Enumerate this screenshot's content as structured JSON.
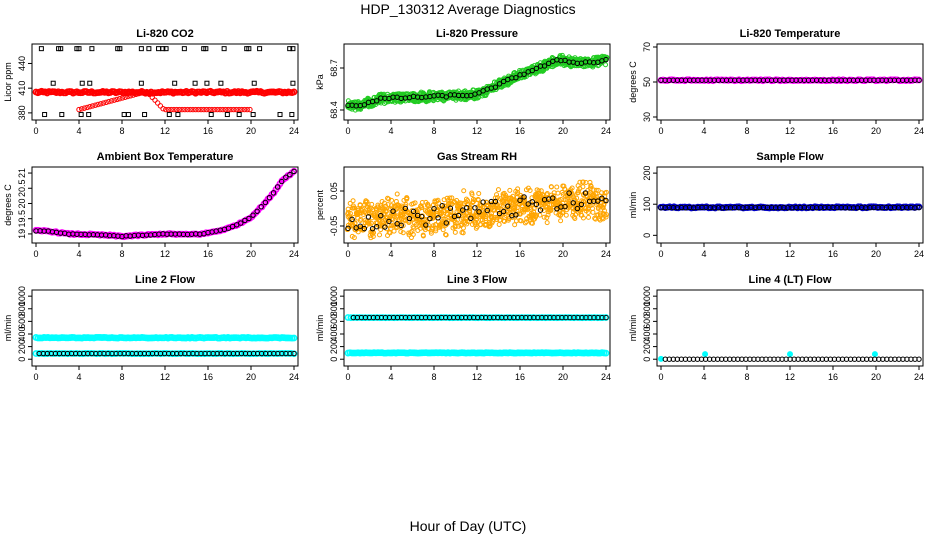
{
  "page": {
    "title": "HDP_130312  Average Diagnostics",
    "xlabel": "Hour of Day (UTC)"
  },
  "colors": {
    "red": "#ff0000",
    "green": "#22cc22",
    "magenta": "#ff00ff",
    "orange": "#ffa500",
    "blue": "#0000cc",
    "cyan": "#00ffff",
    "black": "#000000"
  },
  "chart_data": [
    {
      "id": "co2",
      "type": "scatter",
      "title": "Li-820 CO2",
      "ylabel": "Licor ppm",
      "xlim": [
        0,
        24
      ],
      "ylim": [
        375,
        460
      ],
      "xticks": [
        0,
        4,
        8,
        12,
        16,
        20,
        24
      ],
      "yticks": [
        380,
        410,
        440
      ],
      "series": [
        {
          "name": "co2-mean",
          "color": "#ff0000",
          "style": "dense",
          "x": [
            0,
            24
          ],
          "y": [
            405,
            405
          ],
          "noise": 1.2,
          "n": 140
        },
        {
          "name": "co2-red-outliers",
          "color": "#ff0000",
          "style": "circle",
          "x": [
            4,
            10.3,
            11.9,
            19.9
          ],
          "y": [
            384,
            406,
            384,
            384
          ]
        },
        {
          "name": "co2-minmax",
          "color": "#000000",
          "style": "square",
          "x": [
            0.5,
            2.1,
            2.3,
            3.8,
            4.0,
            5.2,
            7.6,
            7.8,
            9.8,
            10.5,
            11.4,
            11.8,
            12.1,
            13.8,
            15.6,
            15.8,
            17.5,
            19.6,
            19.8,
            20.8,
            23.6,
            23.9,
            0.8,
            2.4,
            4.2,
            4.9,
            8.2,
            8.6,
            10.1,
            12.4,
            13.2,
            16.3,
            17.8,
            18.9,
            20.2,
            22.7,
            23.8,
            1.6,
            4.3,
            5.0,
            9.8,
            12.9,
            14.8,
            15.9,
            17.2,
            20.3,
            23.9
          ],
          "y": [
            458,
            458,
            458,
            458,
            458,
            458,
            458,
            458,
            458,
            458,
            458,
            458,
            458,
            458,
            458,
            458,
            458,
            458,
            458,
            458,
            458,
            458,
            378,
            378,
            378,
            378,
            378,
            378,
            378,
            378,
            378,
            378,
            378,
            378,
            378,
            378,
            378,
            416,
            416,
            416,
            416,
            416,
            416,
            416,
            416,
            416,
            416
          ]
        }
      ]
    },
    {
      "id": "pressure",
      "type": "scatter",
      "title": "Li-820 Pressure",
      "ylabel": "kPa",
      "xlim": [
        0,
        24
      ],
      "ylim": [
        68.35,
        68.85
      ],
      "xticks": [
        0,
        4,
        8,
        12,
        16,
        20,
        24
      ],
      "yticks": [
        68.4,
        68.7
      ],
      "series": [
        {
          "name": "pressure-range",
          "color": "#22cc22",
          "style": "band",
          "x": [
            0,
            1,
            3,
            6,
            9,
            12,
            14,
            16,
            18,
            19.7,
            21,
            23,
            24
          ],
          "y": [
            68.44,
            68.43,
            68.48,
            68.49,
            68.5,
            68.51,
            68.58,
            68.65,
            68.71,
            68.76,
            68.74,
            68.74,
            68.76
          ],
          "spread": 0.035
        },
        {
          "name": "pressure-mean",
          "color": "#000000",
          "style": "circle",
          "x": [
            0,
            1,
            3,
            6,
            9,
            12,
            14,
            16,
            18,
            19.7,
            21,
            23,
            24
          ],
          "y": [
            68.44,
            68.43,
            68.48,
            68.49,
            68.5,
            68.51,
            68.58,
            68.65,
            68.71,
            68.76,
            68.74,
            68.74,
            68.76
          ],
          "noise": 0.008,
          "n": 64
        }
      ]
    },
    {
      "id": "licor-temp",
      "type": "scatter",
      "title": "Li-820 Temperature",
      "ylabel": "degrees C",
      "xlim": [
        0,
        24
      ],
      "ylim": [
        30,
        70
      ],
      "xticks": [
        0,
        4,
        8,
        12,
        16,
        20,
        24
      ],
      "yticks": [
        30,
        50,
        70
      ],
      "series": [
        {
          "name": "licor-temp-range",
          "color": "#ff00ff",
          "style": "dense",
          "x": [
            0,
            24
          ],
          "y": [
            51,
            51
          ],
          "noise": 0.3,
          "n": 120
        },
        {
          "name": "licor-temp-mean",
          "color": "#000000",
          "style": "circle",
          "x": [
            0,
            24
          ],
          "y": [
            51,
            51
          ],
          "noise": 0,
          "n": 64
        }
      ]
    },
    {
      "id": "box-temp",
      "type": "scatter",
      "title": "Ambient Box Temperature",
      "ylabel": "degrees C",
      "xlim": [
        0,
        24
      ],
      "ylim": [
        18.8,
        21.1
      ],
      "xticks": [
        0,
        4,
        8,
        12,
        16,
        20,
        24
      ],
      "yticks": [
        19.0,
        19.5,
        20.0,
        20.5,
        21.0
      ],
      "series": [
        {
          "name": "box-temp-range",
          "color": "#ff00ff",
          "style": "dense",
          "x": [
            0,
            1,
            3,
            5,
            7,
            8,
            10,
            12,
            14,
            15.5,
            17,
            18,
            19,
            20,
            21,
            22,
            23,
            24
          ],
          "y": [
            19.1,
            19.1,
            19.0,
            18.98,
            18.95,
            18.92,
            18.96,
            19.0,
            18.98,
            19.0,
            19.1,
            19.2,
            19.35,
            19.55,
            19.9,
            20.3,
            20.8,
            21.05
          ],
          "noise": 0.02,
          "n": 130
        },
        {
          "name": "box-temp-mean",
          "color": "#000000",
          "style": "circle",
          "x": [
            0,
            1,
            3,
            5,
            7,
            8,
            10,
            12,
            14,
            15.5,
            17,
            18,
            19,
            20,
            21,
            22,
            23,
            24
          ],
          "y": [
            19.1,
            19.1,
            19.0,
            18.98,
            18.95,
            18.92,
            18.96,
            19.0,
            18.98,
            19.0,
            19.1,
            19.2,
            19.35,
            19.55,
            19.9,
            20.3,
            20.8,
            21.05
          ],
          "noise": 0.01,
          "n": 64
        }
      ]
    },
    {
      "id": "rh",
      "type": "scatter",
      "title": "Gas Stream RH",
      "ylabel": "percent",
      "xlim": [
        0,
        24
      ],
      "ylim": [
        -0.09,
        0.11
      ],
      "xticks": [
        0,
        4,
        8,
        12,
        16,
        20,
        24
      ],
      "yticks": [
        -0.05,
        0.05
      ],
      "series": [
        {
          "name": "rh-range",
          "color": "#ffa500",
          "style": "band",
          "x": [
            0,
            8,
            16,
            24
          ],
          "y": [
            -0.035,
            -0.02,
            0.005,
            0.025
          ],
          "spread": 0.045,
          "noise": 0.02
        },
        {
          "name": "rh-mean",
          "color": "#000000",
          "style": "circle",
          "x": [
            0,
            8,
            16,
            24
          ],
          "y": [
            -0.035,
            -0.02,
            0.005,
            0.025
          ],
          "noise": 0.028,
          "n": 64
        }
      ]
    },
    {
      "id": "sample-flow",
      "type": "scatter",
      "title": "Sample Flow",
      "ylabel": "ml/min",
      "xlim": [
        0,
        24
      ],
      "ylim": [
        -15,
        210
      ],
      "xticks": [
        0,
        4,
        8,
        12,
        16,
        20,
        24
      ],
      "yticks": [
        0,
        100,
        200
      ],
      "series": [
        {
          "name": "sample-flow-range",
          "color": "#0000cc",
          "style": "dense",
          "x": [
            0,
            24
          ],
          "y": [
            90,
            90
          ],
          "noise": 2,
          "n": 120
        },
        {
          "name": "sample-flow-mean",
          "color": "#000000",
          "style": "circle",
          "x": [
            0,
            24
          ],
          "y": [
            89,
            89
          ],
          "noise": 0.8,
          "n": 64
        }
      ]
    },
    {
      "id": "line2-flow",
      "type": "scatter",
      "title": "Line 2 Flow",
      "ylabel": "ml/min",
      "xlim": [
        0,
        24
      ],
      "ylim": [
        -60,
        1050
      ],
      "xticks": [
        0,
        4,
        8,
        12,
        16,
        20,
        24
      ],
      "yticks": [
        0,
        200,
        400,
        600,
        800,
        1000
      ],
      "series": [
        {
          "name": "line2-range-high",
          "color": "#00ffff",
          "style": "dense",
          "x": [
            0,
            24
          ],
          "y": [
            340,
            340
          ],
          "noise": 6,
          "n": 130
        },
        {
          "name": "line2-range-low",
          "color": "#00ffff",
          "style": "dense",
          "x": [
            0,
            24
          ],
          "y": [
            90,
            90
          ],
          "noise": 3,
          "n": 90
        },
        {
          "name": "line2-mean",
          "color": "#000000",
          "style": "circle",
          "x": [
            0.3,
            24
          ],
          "y": [
            90,
            90
          ],
          "noise": 0,
          "n": 64
        }
      ]
    },
    {
      "id": "line3-flow",
      "type": "scatter",
      "title": "Line 3 Flow",
      "ylabel": "ml/min",
      "xlim": [
        0,
        24
      ],
      "ylim": [
        -60,
        1050
      ],
      "xticks": [
        0,
        4,
        8,
        12,
        16,
        20,
        24
      ],
      "yticks": [
        0,
        200,
        400,
        600,
        800,
        1000
      ],
      "series": [
        {
          "name": "line3-range-high",
          "color": "#00ffff",
          "style": "dense",
          "x": [
            0,
            24
          ],
          "y": [
            660,
            660
          ],
          "noise": 2,
          "n": 90
        },
        {
          "name": "line3-range-low",
          "color": "#00ffff",
          "style": "dense",
          "x": [
            0,
            24
          ],
          "y": [
            100,
            100
          ],
          "noise": 4,
          "n": 130
        },
        {
          "name": "line3-mean",
          "color": "#000000",
          "style": "circle",
          "x": [
            0.5,
            24
          ],
          "y": [
            660,
            660
          ],
          "noise": 0,
          "n": 64
        }
      ]
    },
    {
      "id": "line4-flow",
      "type": "scatter",
      "title": "Line 4 (LT) Flow",
      "ylabel": "ml/min",
      "xlim": [
        0,
        24
      ],
      "ylim": [
        -60,
        1050
      ],
      "xticks": [
        0,
        4,
        8,
        12,
        16,
        20,
        24
      ],
      "yticks": [
        0,
        200,
        400,
        600,
        800,
        1000
      ],
      "series": [
        {
          "name": "line4-spikes",
          "color": "#00ffff",
          "style": "circle-filled",
          "x": [
            0,
            4.1,
            12.0,
            19.9
          ],
          "y": [
            5,
            80,
            80,
            80
          ]
        },
        {
          "name": "line4-mean",
          "color": "#000000",
          "style": "circle",
          "x": [
            0.4,
            24
          ],
          "y": [
            0,
            0
          ],
          "noise": 0,
          "n": 64
        }
      ]
    }
  ]
}
